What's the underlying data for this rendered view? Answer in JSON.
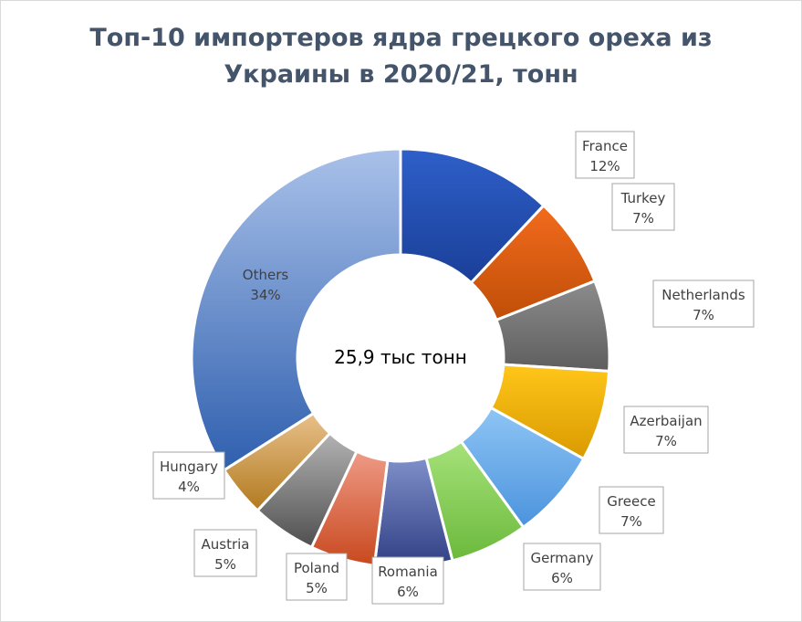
{
  "title_lines": [
    "Топ-10 импортеров ядра грецкого ореха из",
    "Украины в 2020/21, тонн"
  ],
  "center_label": "25,9 тыс тонн",
  "chart_data": {
    "type": "pie",
    "donut": true,
    "title": "Топ-10 импортеров ядра грецкого ореха из Украины в 2020/21, тонн",
    "center_label": "25,9 тыс тонн",
    "start_angle_deg": 0,
    "direction": "clockwise",
    "slices": [
      {
        "name": "France",
        "label": "12%",
        "value": 12,
        "color": "#2e5fc9",
        "color_dark": "#1a3f98"
      },
      {
        "name": "Turkey",
        "label": "7%",
        "value": 7,
        "color": "#f26b1d",
        "color_dark": "#c04e08"
      },
      {
        "name": "Netherlands",
        "label": "7%",
        "value": 7,
        "color": "#8c8c8c",
        "color_dark": "#5e5e5e"
      },
      {
        "name": "Azerbaijan",
        "label": "7%",
        "value": 7,
        "color": "#ffc61a",
        "color_dark": "#d99a00"
      },
      {
        "name": "Greece",
        "label": "7%",
        "value": 7,
        "color": "#8ec5f5",
        "color_dark": "#4b93dd"
      },
      {
        "name": "Germany",
        "label": "6%",
        "value": 6,
        "color": "#a6e27a",
        "color_dark": "#6bb93c"
      },
      {
        "name": "Romania",
        "label": "6%",
        "value": 6,
        "color": "#7f8fc9",
        "color_dark": "#2f3f84"
      },
      {
        "name": "Poland",
        "label": "5%",
        "value": 5,
        "color": "#ef9a86",
        "color_dark": "#c8481e"
      },
      {
        "name": "Austria",
        "label": "5%",
        "value": 5,
        "color": "#b3b3b3",
        "color_dark": "#4f4f4f"
      },
      {
        "name": "Hungary",
        "label": "4%",
        "value": 4,
        "color": "#e8c08a",
        "color_dark": "#b27a1f"
      },
      {
        "name": "Others",
        "label": "34%",
        "value": 34,
        "color": "#a9c1e9",
        "color_dark": "#2f5fae"
      }
    ]
  }
}
